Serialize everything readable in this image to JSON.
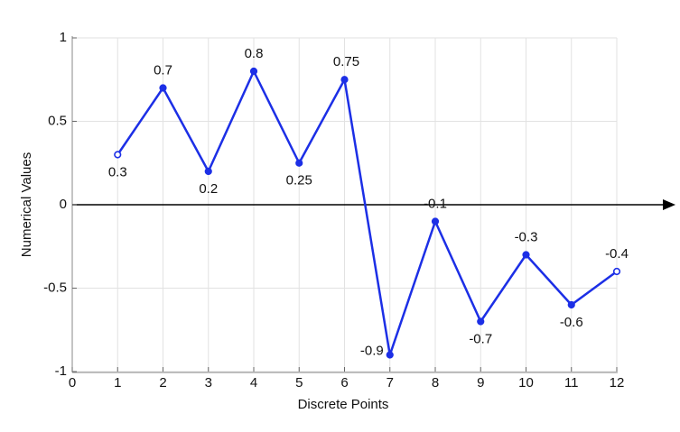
{
  "chart_data": {
    "type": "line",
    "x_label": "Discrete Points",
    "y_label": "Numerical Values",
    "x": [
      1,
      2,
      3,
      4,
      5,
      6,
      7,
      8,
      9,
      10,
      11,
      12
    ],
    "series": [
      {
        "color": "#1c2fe6",
        "values": [
          0.3,
          0.7,
          0.2,
          0.8,
          0.25,
          0.75,
          -0.9,
          -0.1,
          -0.7,
          -0.3,
          -0.6,
          -0.4
        ]
      }
    ],
    "xlim": [
      0,
      12
    ],
    "xticks": [
      0,
      1,
      2,
      3,
      4,
      5,
      6,
      7,
      8,
      9,
      10,
      11,
      12
    ],
    "ylim": [
      -1,
      1
    ],
    "yticks": [
      -1,
      -0.5,
      0,
      0.5,
      1
    ],
    "grid": true
  }
}
